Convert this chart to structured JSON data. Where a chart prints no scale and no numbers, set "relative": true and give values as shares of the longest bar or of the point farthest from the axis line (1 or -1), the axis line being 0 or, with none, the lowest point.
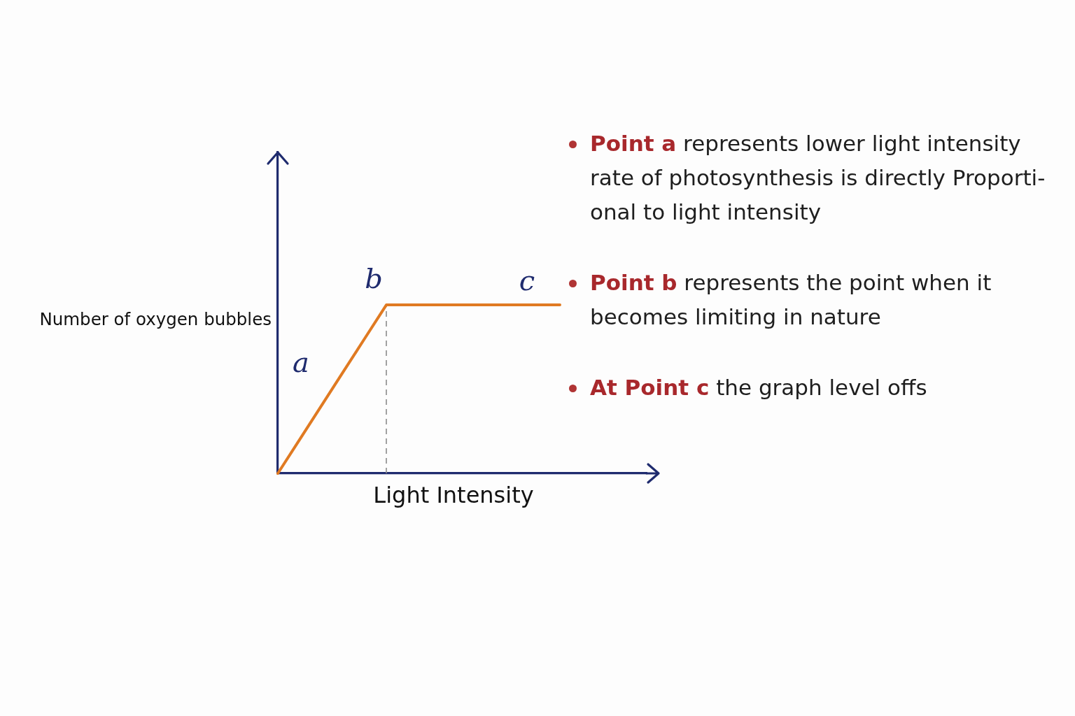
{
  "chart_data": {
    "type": "line",
    "xlabel": "Light Intensity",
    "ylabel": "Number of oxygen bubbles",
    "categories": [
      null,
      null,
      null,
      null,
      null,
      null,
      null,
      null,
      null,
      null,
      null,
      null,
      null,
      null,
      null,
      null,
      null,
      null
    ],
    "series": [
      {
        "color": "#e07a22",
        "values": [
          0,
          0.2,
          0.4,
          0.6,
          0.8,
          1,
          1,
          1,
          1,
          1,
          1,
          1,
          1,
          1,
          null,
          null,
          null,
          null
        ]
      }
    ],
    "relative": true,
    "annotations": [
      "a",
      "b",
      "c",
      "Point a represents lower light intensity\nrate of photosynthesis is directly Proporti-\nonal to light intensity",
      "Point b represents the point when it\nbecomes limiting in nature",
      "At Point c the graph level offs"
    ],
    "grid": false,
    "legend": false
  }
}
